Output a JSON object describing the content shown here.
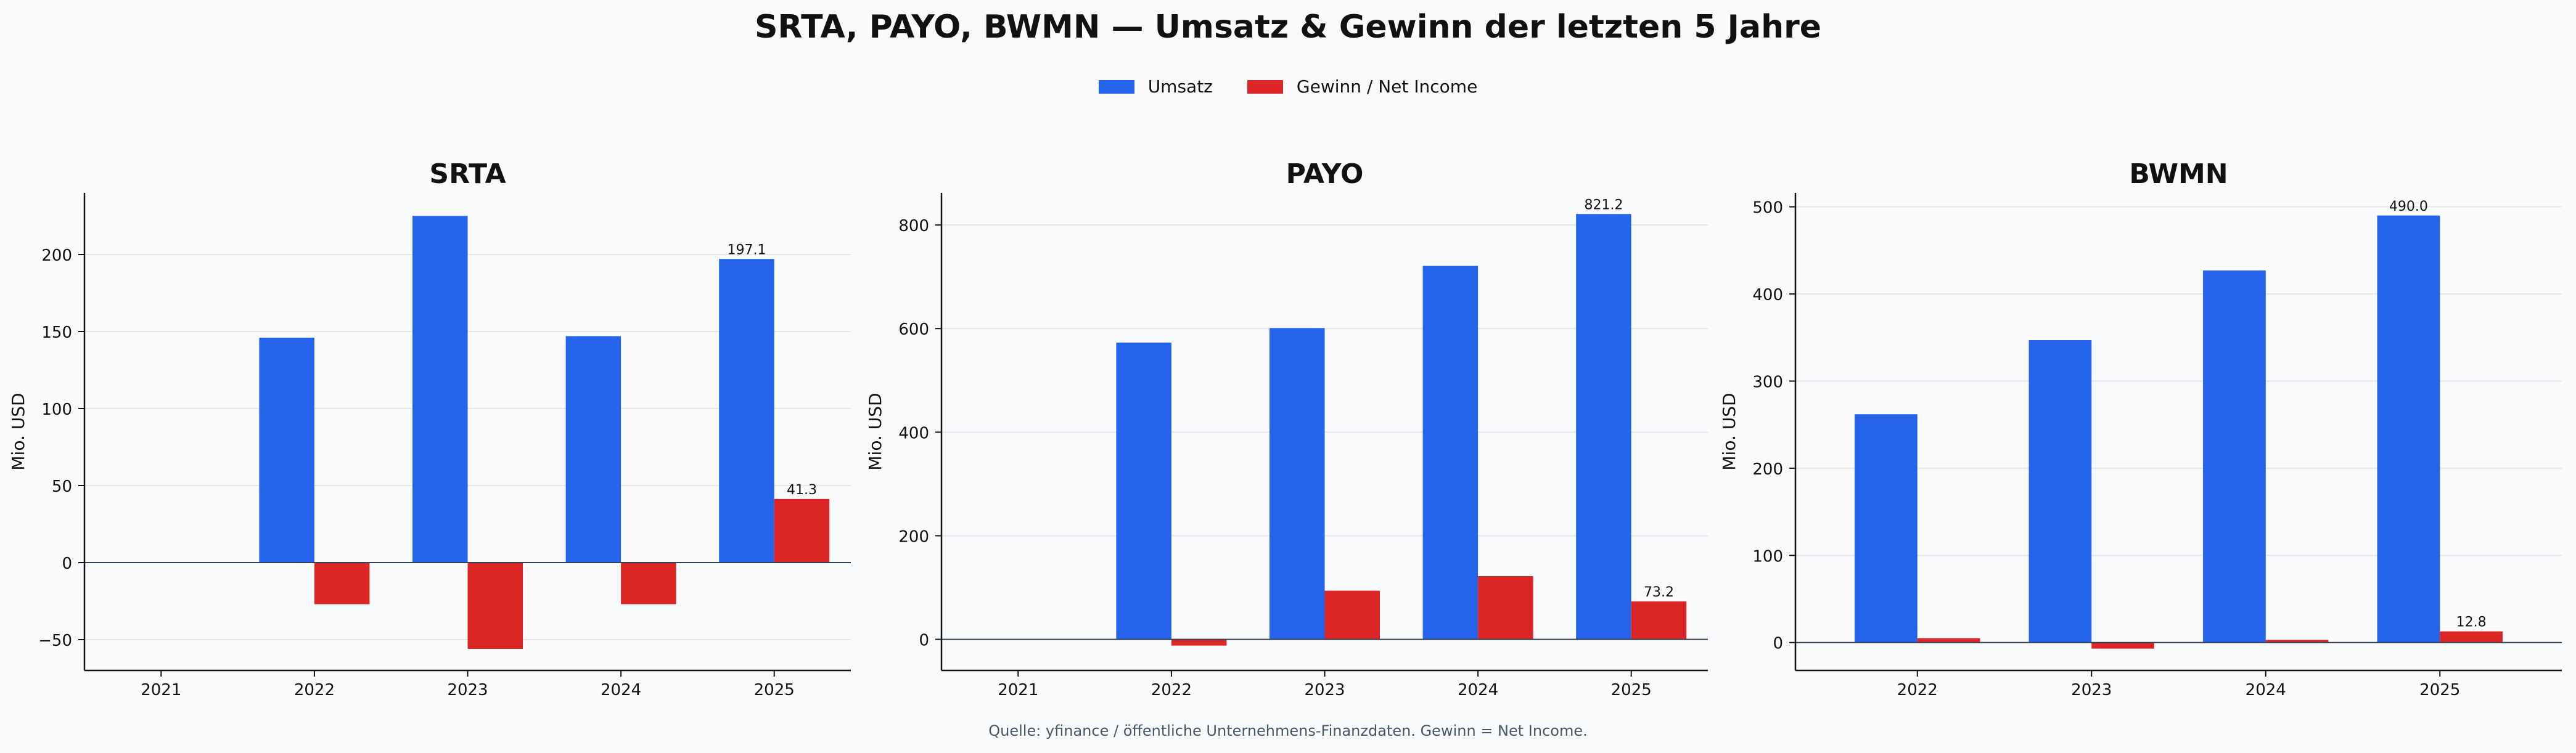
{
  "title": "SRTA, PAYO, BWMN — Umsatz & Gewinn der letzten 5 Jahre",
  "source_note": "Quelle: yfinance / öffentliche Unternehmens-Finanzdaten. Gewinn = Net Income.",
  "legend": [
    {
      "name": "Umsatz",
      "color": "#2563eb"
    },
    {
      "name": "Gewinn / Net Income",
      "color": "#dc2626"
    }
  ],
  "chart_data": [
    {
      "type": "bar",
      "title": "SRTA",
      "ylabel": "Mio. USD",
      "x_ticks": [
        "2021",
        "2022",
        "2023",
        "2024",
        "2025"
      ],
      "categories": [
        "2022",
        "2023",
        "2024",
        "2025"
      ],
      "series": [
        {
          "name": "Umsatz",
          "values": [
            146,
            225,
            147,
            197.1
          ]
        },
        {
          "name": "Gewinn / Net Income",
          "values": [
            -27,
            -56,
            -27,
            41.3
          ]
        }
      ],
      "data_labels": {
        "Umsatz": "197.1",
        "Gewinn / Net Income": "41.3"
      },
      "ylim": [
        -70,
        240
      ],
      "y_ticks": [
        -50,
        0,
        50,
        100,
        150,
        200
      ],
      "grid": true
    },
    {
      "type": "bar",
      "title": "PAYO",
      "ylabel": "Mio. USD",
      "x_ticks": [
        "2021",
        "2022",
        "2023",
        "2024",
        "2025"
      ],
      "categories": [
        "2022",
        "2023",
        "2024",
        "2025"
      ],
      "series": [
        {
          "name": "Umsatz",
          "values": [
            573,
            601,
            721,
            821.2
          ]
        },
        {
          "name": "Gewinn / Net Income",
          "values": [
            -12,
            94,
            122,
            73.2
          ]
        }
      ],
      "data_labels": {
        "Umsatz": "821.2",
        "Gewinn / Net Income": "73.2"
      },
      "ylim": [
        -60,
        862
      ],
      "y_ticks": [
        0,
        200,
        400,
        600,
        800
      ],
      "grid": true
    },
    {
      "type": "bar",
      "title": "BWMN",
      "ylabel": "Mio. USD",
      "x_ticks": [
        "2022",
        "2023",
        "2024",
        "2025"
      ],
      "categories": [
        "2022",
        "2023",
        "2024",
        "2025"
      ],
      "series": [
        {
          "name": "Umsatz",
          "values": [
            262,
            347,
            427,
            490.0
          ]
        },
        {
          "name": "Gewinn / Net Income",
          "values": [
            5,
            -7,
            3,
            12.8
          ]
        }
      ],
      "data_labels": {
        "Umsatz": "490.0",
        "Gewinn / Net Income": "12.8"
      },
      "ylim": [
        -32,
        516
      ],
      "y_ticks": [
        0,
        100,
        200,
        300,
        400,
        500
      ],
      "grid": true
    }
  ]
}
